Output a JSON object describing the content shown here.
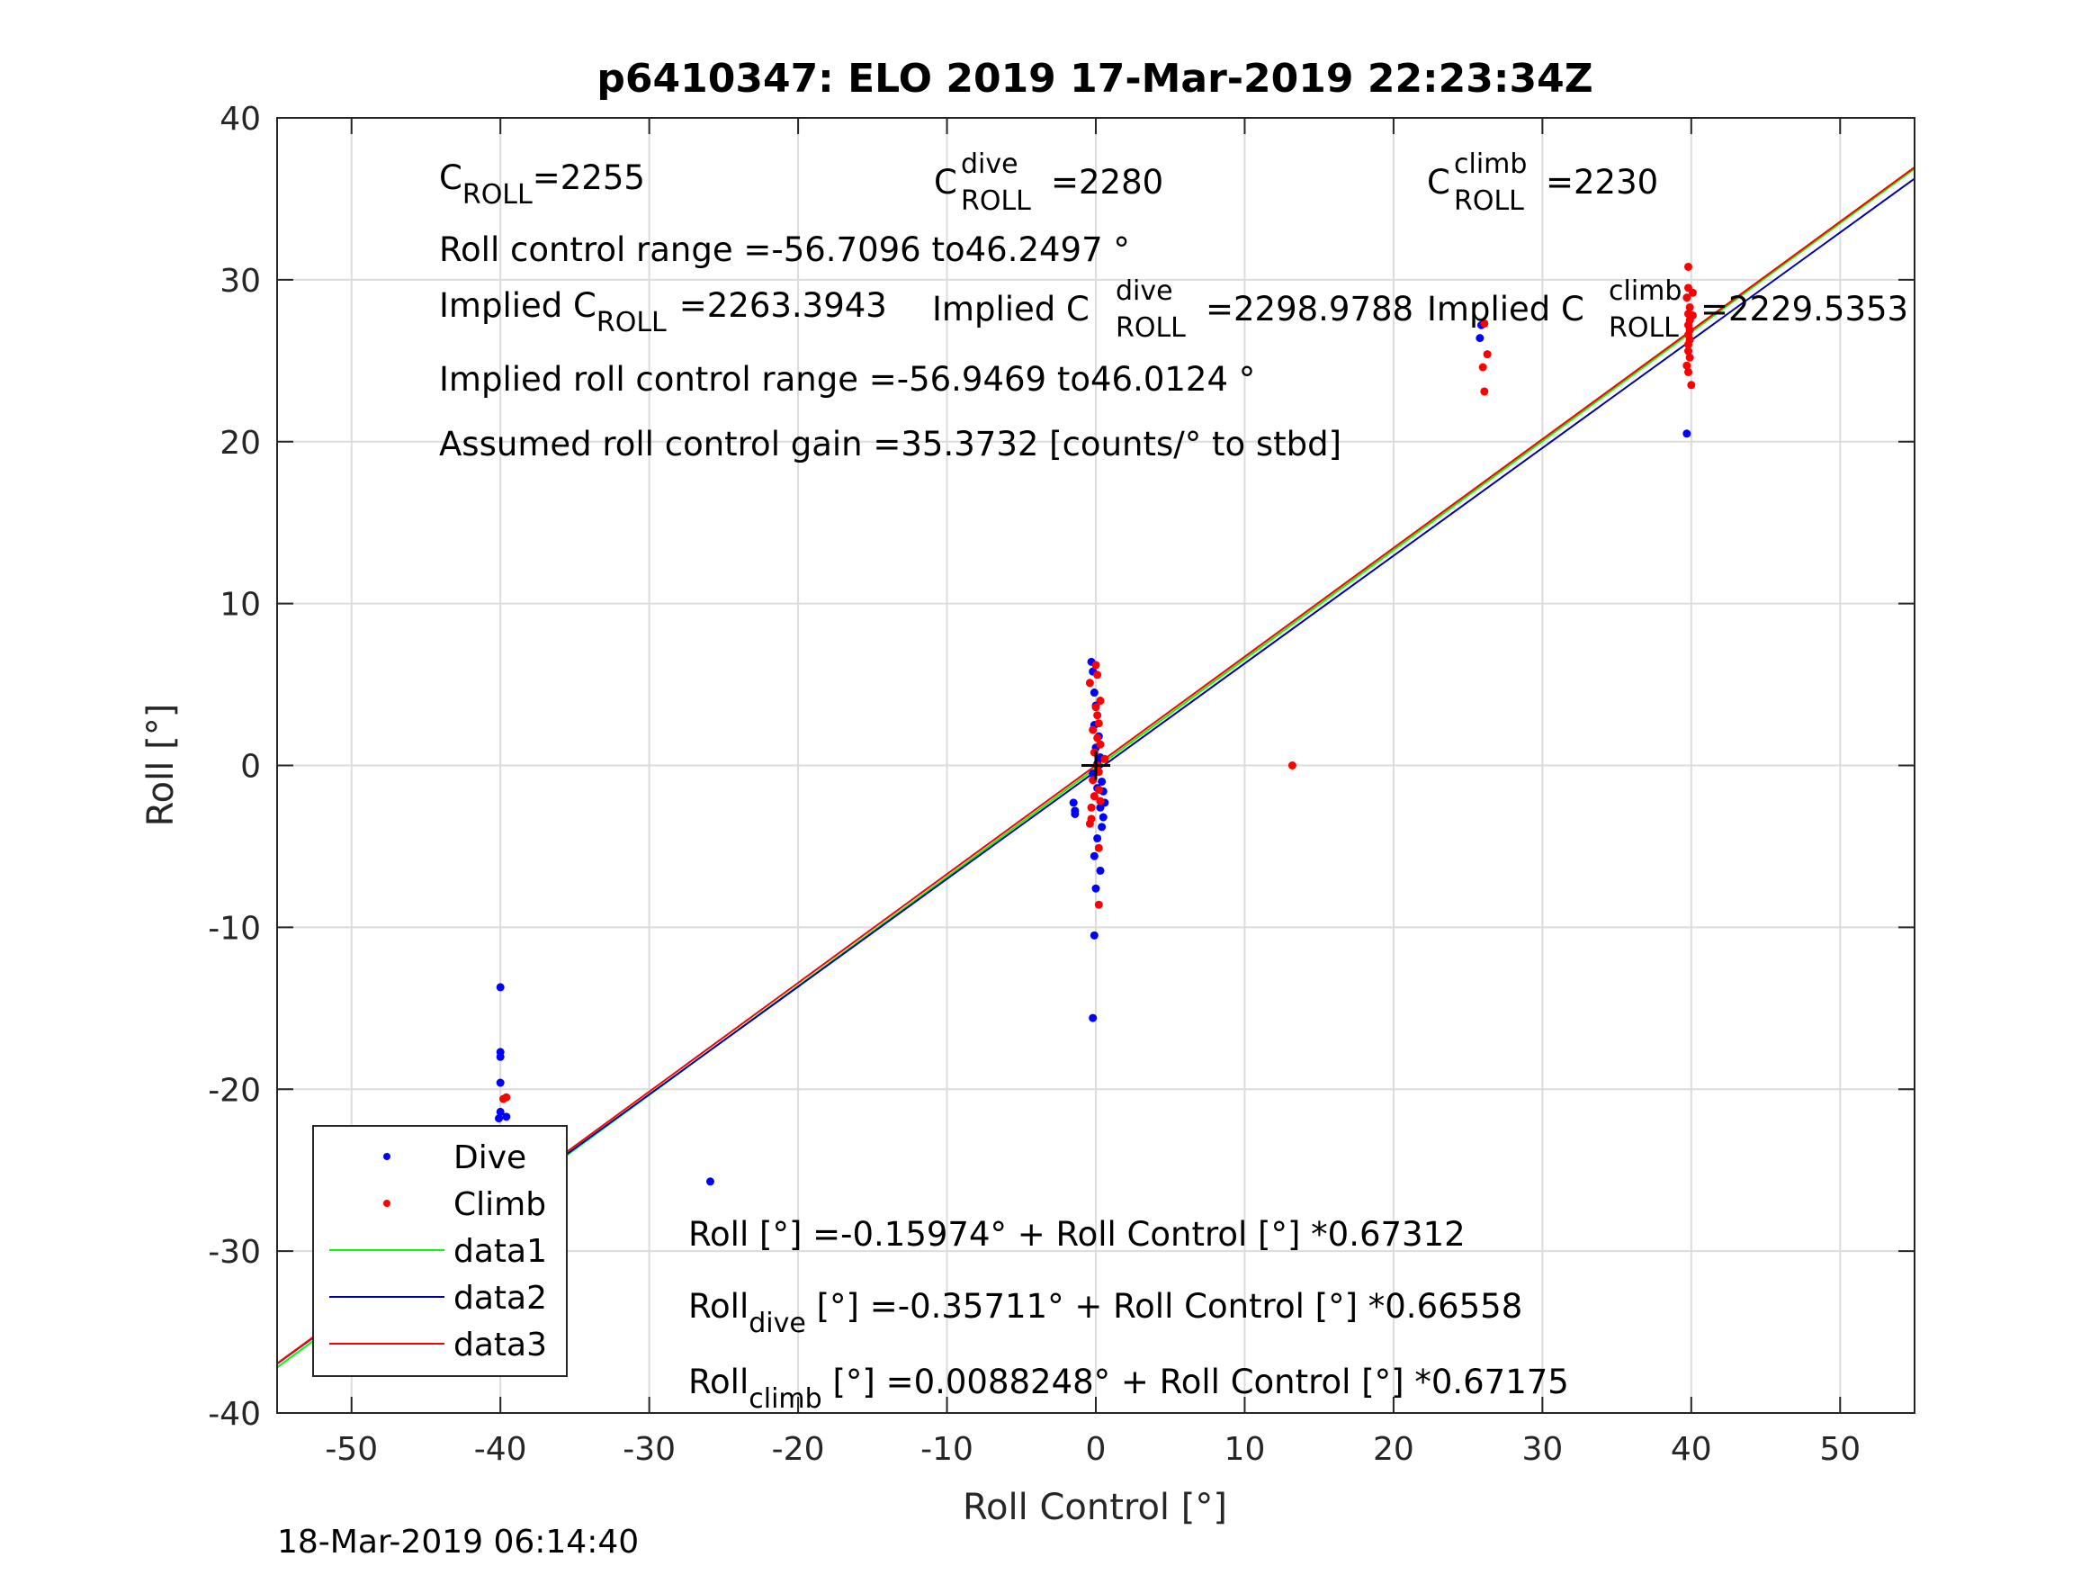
{
  "chart_data": {
    "type": "scatter",
    "title": "p6410347: ELO 2019 17-Mar-2019 22:23:34Z",
    "xlabel": "Roll Control [°]",
    "ylabel": "Roll [°]",
    "xlim": [
      -55,
      55
    ],
    "ylim": [
      -40,
      40
    ],
    "xticks": [
      -50,
      -40,
      -30,
      -20,
      -10,
      0,
      10,
      20,
      30,
      40,
      50
    ],
    "yticks": [
      -40,
      -30,
      -20,
      -10,
      0,
      10,
      20,
      30,
      40
    ],
    "xtick_labels": [
      "-50",
      "-40",
      "-30",
      "-20",
      "-10",
      "0",
      "10",
      "20",
      "30",
      "40",
      "50"
    ],
    "ytick_labels": [
      "-40",
      "-30",
      "-20",
      "-10",
      "0",
      "10",
      "20",
      "30",
      "40"
    ],
    "grid": true,
    "legend_position": "bottom-left",
    "series": [
      {
        "name": "Dive",
        "kind": "points",
        "color": "#0000ff",
        "points": [
          [
            -40,
            -13.7
          ],
          [
            -40,
            -17.7
          ],
          [
            -40,
            -18
          ],
          [
            -40,
            -19.6
          ],
          [
            -40,
            -21.4
          ],
          [
            -40.1,
            -21.8
          ],
          [
            -39.6,
            -21.7
          ],
          [
            -40,
            -22.8
          ],
          [
            -40.1,
            -23.5
          ],
          [
            -40,
            -24.1
          ],
          [
            -40.1,
            -24.8
          ],
          [
            -40,
            -25.3
          ],
          [
            -39.9,
            -25.8
          ],
          [
            -40.1,
            -26.2
          ],
          [
            -39.7,
            -26.5
          ],
          [
            -40,
            -27
          ],
          [
            -40.1,
            -27.4
          ],
          [
            -39.6,
            -27.7
          ],
          [
            -40,
            -28
          ],
          [
            -40.1,
            -28.3
          ],
          [
            -39.5,
            -28.6
          ],
          [
            -40,
            -29
          ],
          [
            -40.1,
            -29.4
          ],
          [
            -40,
            -29.9
          ],
          [
            -40.1,
            -30.5
          ],
          [
            -40,
            -31
          ],
          [
            -40,
            -31.5
          ],
          [
            -40.1,
            -32
          ],
          [
            -40,
            -33
          ],
          [
            -40,
            -34
          ],
          [
            -25.9,
            -25.7
          ],
          [
            -1.5,
            -2.3
          ],
          [
            -1.4,
            -2.8
          ],
          [
            -1.4,
            -3.0
          ],
          [
            -0.3,
            6.4
          ],
          [
            -0.2,
            5.8
          ],
          [
            -0.1,
            4.5
          ],
          [
            0,
            3.7
          ],
          [
            -0.1,
            2.5
          ],
          [
            0.2,
            1.8
          ],
          [
            0,
            1.1
          ],
          [
            0.3,
            0.5
          ],
          [
            0.1,
            0.1
          ],
          [
            -0.2,
            -0.5
          ],
          [
            0.4,
            -1.0
          ],
          [
            0.1,
            -1.4
          ],
          [
            0.5,
            -1.6
          ],
          [
            0.6,
            -2.3
          ],
          [
            0.3,
            -2.6
          ],
          [
            0.5,
            -3.2
          ],
          [
            0.4,
            -3.8
          ],
          [
            0.1,
            -4.5
          ],
          [
            -0.1,
            -5.6
          ],
          [
            0.3,
            -6.5
          ],
          [
            0,
            -7.6
          ],
          [
            -0.1,
            -10.5
          ],
          [
            -0.2,
            -15.6
          ],
          [
            25.8,
            26.4
          ],
          [
            25.9,
            27.2
          ],
          [
            39.7,
            20.5
          ]
        ]
      },
      {
        "name": "Climb",
        "kind": "points",
        "color": "#ff0000",
        "points": [
          [
            -39.8,
            -20.6
          ],
          [
            -39.6,
            -20.5
          ],
          [
            -39.9,
            -23.1
          ],
          [
            -39.7,
            -24
          ],
          [
            -39.8,
            -24.6
          ],
          [
            -39.7,
            -25.5
          ],
          [
            -39.8,
            -26.5
          ],
          [
            -0.4,
            5.1
          ],
          [
            0,
            6.2
          ],
          [
            0.1,
            5.6
          ],
          [
            0.3,
            4.0
          ],
          [
            0,
            3.6
          ],
          [
            0.1,
            3.1
          ],
          [
            0.2,
            2.6
          ],
          [
            -0.2,
            2.2
          ],
          [
            0.1,
            1.7
          ],
          [
            0.3,
            1.3
          ],
          [
            -0.1,
            0.8
          ],
          [
            0.6,
            0.4
          ],
          [
            0.1,
            0
          ],
          [
            0.2,
            -0.4
          ],
          [
            -0.2,
            -0.9
          ],
          [
            0.2,
            -1.5
          ],
          [
            -0.1,
            -1.9
          ],
          [
            0.3,
            -2.2
          ],
          [
            -0.3,
            -2.6
          ],
          [
            -0.3,
            -3.3
          ],
          [
            -0.4,
            -3.6
          ],
          [
            0.2,
            -5.1
          ],
          [
            0.2,
            -8.6
          ],
          [
            13.2,
            0
          ],
          [
            26,
            24.6
          ],
          [
            26.3,
            25.4
          ],
          [
            26.1,
            23.1
          ],
          [
            26.1,
            27.3
          ],
          [
            39.8,
            30.8
          ],
          [
            39.8,
            29.5
          ],
          [
            39.7,
            28.9
          ],
          [
            39.9,
            28.3
          ],
          [
            39.8,
            27.9
          ],
          [
            39.9,
            27.5
          ],
          [
            39.8,
            27.2
          ],
          [
            39.9,
            26.9
          ],
          [
            39.8,
            26.6
          ],
          [
            39.9,
            26.3
          ],
          [
            39.8,
            26.0
          ],
          [
            39.8,
            25.6
          ],
          [
            39.9,
            25.2
          ],
          [
            39.7,
            24.7
          ],
          [
            39.8,
            24.3
          ],
          [
            40,
            23.5
          ],
          [
            40.1,
            29.2
          ],
          [
            40.1,
            27.8
          ]
        ]
      },
      {
        "name": "data1",
        "kind": "line",
        "color": "#00ff00",
        "x": [
          -55,
          55
        ],
        "y": [
          -37.18,
          36.86
        ]
      },
      {
        "name": "data2",
        "kind": "line",
        "color": "#0000aa",
        "x": [
          -55,
          55
        ],
        "y": [
          -36.96,
          36.25
        ]
      },
      {
        "name": "data3",
        "kind": "line",
        "color": "#ff0000",
        "x": [
          -55,
          55
        ],
        "y": [
          -36.94,
          36.95
        ]
      }
    ],
    "origin_marker": {
      "x": 0,
      "y": 0,
      "symbol": "+"
    }
  },
  "annotations": {
    "c_roll": {
      "base": "C",
      "sub": "ROLL",
      "value": "=2255"
    },
    "c_roll_dive": {
      "base": "C",
      "sup": "dive",
      "sub": "ROLL",
      "value": "=2280"
    },
    "c_roll_climb": {
      "base": "C",
      "sup": "climb",
      "sub": "ROLL",
      "value": "=2230"
    },
    "roll_control_range": "Roll control range =-56.7096 to46.2497 °",
    "implied_c_roll": {
      "prefix": "Implied C",
      "sub": "ROLL",
      "value": "=2263.3943"
    },
    "implied_c_roll_dive": {
      "prefix": "Implied C",
      "sup": "dive",
      "sub": "ROLL",
      "value": "=2298.9788"
    },
    "implied_c_roll_climb": {
      "prefix": "Implied C",
      "sup": "climb",
      "sub": "ROLL",
      "value": "=2229.5353"
    },
    "implied_roll_control_range": "Implied roll control range =-56.9469 to46.0124 °",
    "assumed_gain": "Assumed roll control gain =35.3732 [counts/° to stbd]",
    "fit_all": "Roll [°] =-0.15974° + Roll Control [°] *0.67312",
    "fit_dive": {
      "base": "Roll",
      "sub": "dive",
      "rest": " [°] =-0.35711° + Roll Control [°] *0.66558"
    },
    "fit_climb": {
      "base": "Roll",
      "sub": "climb",
      "rest": " [°] =0.0088248° + Roll Control [°] *0.67175"
    }
  },
  "timestamp": "18-Mar-2019 06:14:40"
}
